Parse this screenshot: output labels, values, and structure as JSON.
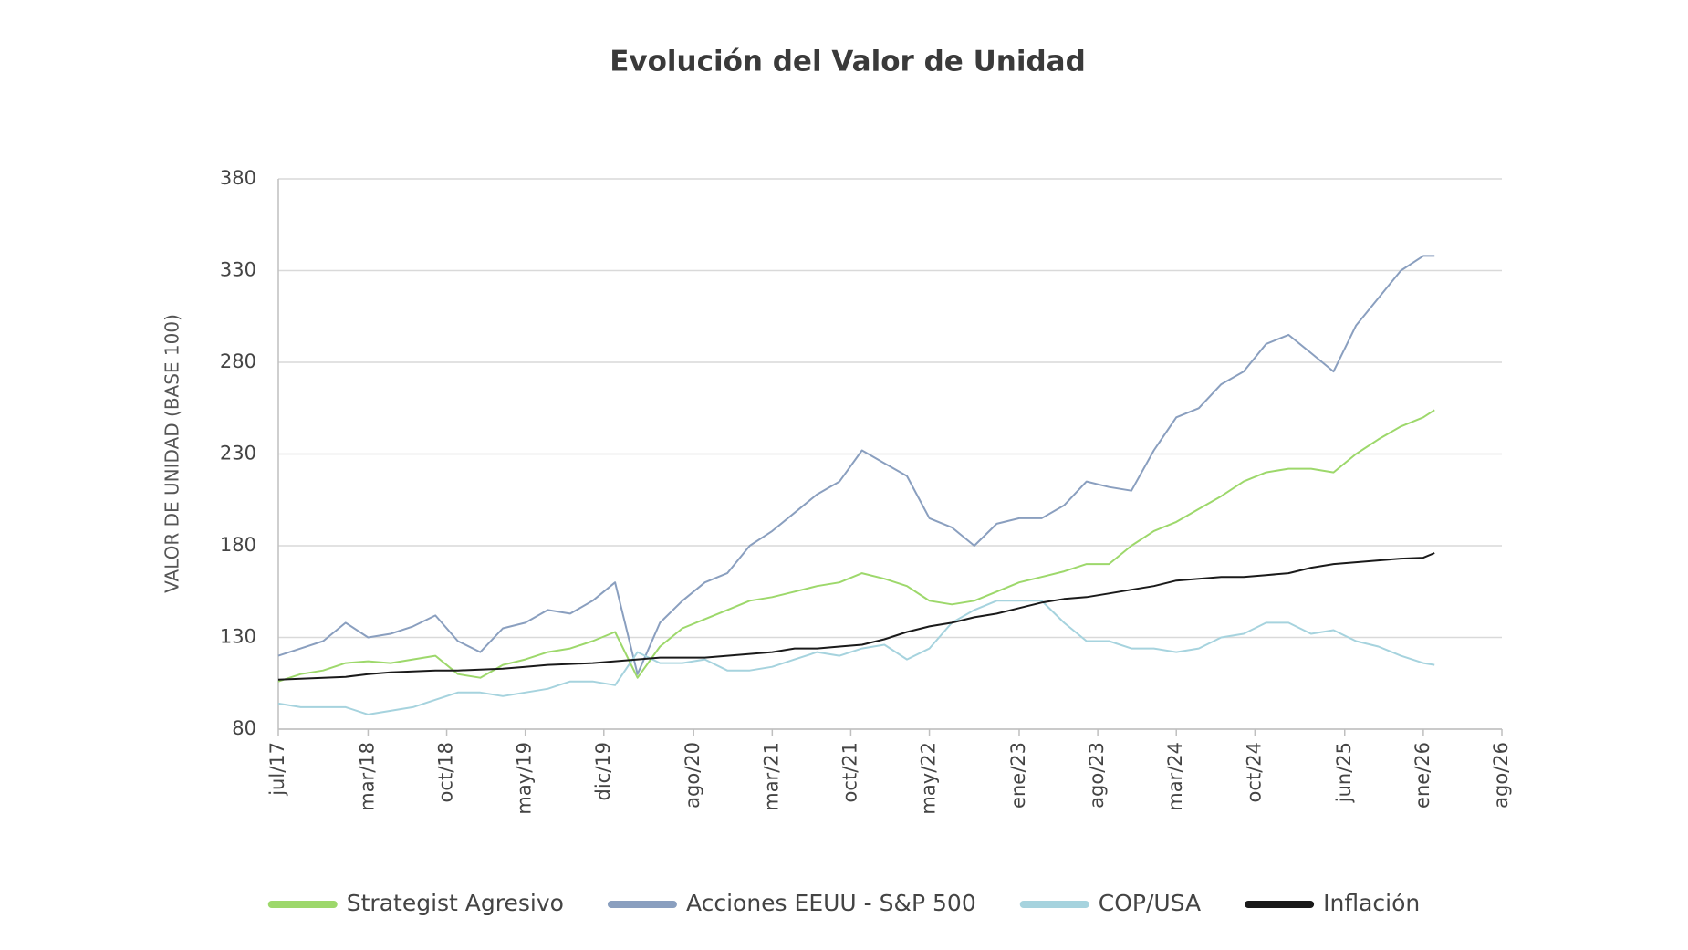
{
  "chart_data": {
    "type": "line",
    "title": "Evolución del Valor de Unidad",
    "y_label": "VALOR DE UNIDAD (BASE 100)",
    "x": [
      "2017-07",
      "2017-09",
      "2017-11",
      "2018-01",
      "2018-03",
      "2018-05",
      "2018-07",
      "2018-09",
      "2018-11",
      "2019-01",
      "2019-03",
      "2019-05",
      "2019-07",
      "2019-09",
      "2019-11",
      "2020-01",
      "2020-03",
      "2020-05",
      "2020-07",
      "2020-09",
      "2020-11",
      "2021-01",
      "2021-03",
      "2021-05",
      "2021-07",
      "2021-09",
      "2021-11",
      "2022-01",
      "2022-03",
      "2022-05",
      "2022-07",
      "2022-09",
      "2022-11",
      "2023-01",
      "2023-03",
      "2023-05",
      "2023-07",
      "2023-09",
      "2023-11",
      "2024-01",
      "2024-03",
      "2024-05",
      "2024-07",
      "2024-09",
      "2024-11",
      "2025-01",
      "2025-03",
      "2025-05",
      "2025-07",
      "2025-09",
      "2025-11",
      "2026-01",
      "2026-02"
    ],
    "series": [
      {
        "name": "Strategist Agresivo",
        "color": "#9dd86b",
        "values": [
          106,
          110,
          112,
          116,
          117,
          116,
          118,
          120,
          110,
          108,
          115,
          118,
          122,
          124,
          128,
          133,
          108,
          125,
          135,
          140,
          145,
          150,
          152,
          155,
          158,
          160,
          165,
          162,
          158,
          150,
          148,
          150,
          155,
          160,
          163,
          166,
          170,
          170,
          180,
          188,
          193,
          200,
          207,
          215,
          220,
          222,
          222,
          220,
          230,
          238,
          245,
          250,
          254
        ]
      },
      {
        "name": "Acciones EEUU - S&P 500",
        "color": "#8a9fbf",
        "values": [
          120,
          124,
          128,
          138,
          130,
          132,
          136,
          142,
          128,
          122,
          135,
          138,
          145,
          143,
          150,
          160,
          110,
          138,
          150,
          160,
          165,
          180,
          188,
          198,
          208,
          215,
          232,
          225,
          218,
          195,
          190,
          180,
          192,
          195,
          195,
          202,
          215,
          212,
          210,
          232,
          250,
          255,
          268,
          275,
          290,
          295,
          285,
          275,
          300,
          315,
          330,
          338,
          338
        ]
      },
      {
        "name": "COP/USA",
        "color": "#a6d3de",
        "values": [
          94,
          92,
          92,
          92,
          88,
          90,
          92,
          96,
          100,
          100,
          98,
          100,
          102,
          106,
          106,
          104,
          122,
          116,
          116,
          118,
          112,
          112,
          114,
          118,
          122,
          120,
          124,
          126,
          118,
          124,
          138,
          145,
          150,
          150,
          150,
          138,
          128,
          128,
          124,
          124,
          122,
          124,
          130,
          132,
          138,
          138,
          132,
          134,
          128,
          125,
          120,
          116,
          115
        ]
      },
      {
        "name": "Inflación",
        "color": "#1a1a1a",
        "values": [
          107,
          107.5,
          108,
          108.5,
          110,
          111,
          111.5,
          112,
          112,
          112.5,
          113,
          114,
          115,
          115.5,
          116,
          117,
          118,
          119,
          119,
          119,
          120,
          121,
          122,
          124,
          124,
          125,
          126,
          129,
          133,
          136,
          138,
          141,
          143,
          146,
          149,
          151,
          152,
          154,
          156,
          158,
          161,
          162,
          163,
          163,
          164,
          165,
          168,
          170,
          171,
          172,
          173,
          173.5,
          176
        ]
      }
    ],
    "xlim": [
      "2017-07",
      "2026-08"
    ],
    "xticks": [
      {
        "value": "2017-07",
        "label": "jul/17"
      },
      {
        "value": "2018-03",
        "label": "mar/18"
      },
      {
        "value": "2018-10",
        "label": "oct/18"
      },
      {
        "value": "2019-05",
        "label": "may/19"
      },
      {
        "value": "2019-12",
        "label": "dic/19"
      },
      {
        "value": "2020-08",
        "label": "ago/20"
      },
      {
        "value": "2021-03",
        "label": "mar/21"
      },
      {
        "value": "2021-10",
        "label": "oct/21"
      },
      {
        "value": "2022-05",
        "label": "may/22"
      },
      {
        "value": "2023-01",
        "label": "ene/23"
      },
      {
        "value": "2023-08",
        "label": "ago/23"
      },
      {
        "value": "2024-03",
        "label": "mar/24"
      },
      {
        "value": "2024-10",
        "label": "oct/24"
      },
      {
        "value": "2025-06",
        "label": "jun/25"
      },
      {
        "value": "2026-01",
        "label": "ene/26"
      },
      {
        "value": "2026-08",
        "label": "ago/26"
      }
    ],
    "ylim": [
      80,
      380
    ],
    "yticks": [
      80,
      130,
      180,
      230,
      280,
      330,
      380
    ],
    "grid": true,
    "legend": "bottom"
  }
}
